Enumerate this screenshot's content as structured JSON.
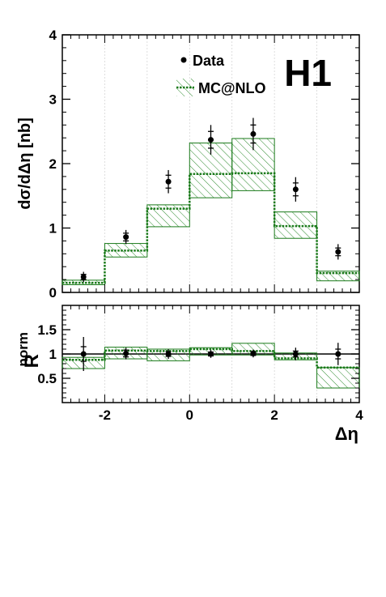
{
  "experiment_label": "H1",
  "legend": {
    "data_label": "Data",
    "mc_label": "MC@NLO"
  },
  "colors": {
    "mc_line": "#1a7a1a",
    "mc_hatch": "#2e8b2e",
    "data": "#000000"
  },
  "chart_data": [
    {
      "type": "scatter",
      "panel": "top",
      "ylabel": "dσ/dΔη [nb]",
      "xlim": [
        -3,
        4
      ],
      "ylim": [
        0,
        4
      ],
      "x_ticks": [],
      "y_ticks": [
        "0",
        "1",
        "2",
        "3",
        "4"
      ],
      "grid": false,
      "legend_position": "top-center",
      "bins": [
        {
          "lo": -3,
          "hi": -2,
          "data": 0.24,
          "stat": 0.04,
          "tot": 0.08,
          "mc": 0.15,
          "mc_lo": 0.12,
          "mc_hi": 0.19
        },
        {
          "lo": -2,
          "hi": -1,
          "data": 0.86,
          "stat": 0.06,
          "tot": 0.11,
          "mc": 0.65,
          "mc_lo": 0.55,
          "mc_hi": 0.76
        },
        {
          "lo": -1,
          "hi": 0,
          "data": 1.72,
          "stat": 0.1,
          "tot": 0.18,
          "mc": 1.3,
          "mc_lo": 1.02,
          "mc_hi": 1.36
        },
        {
          "lo": 0,
          "hi": 1,
          "data": 2.37,
          "stat": 0.13,
          "tot": 0.23,
          "mc": 1.84,
          "mc_lo": 1.47,
          "mc_hi": 2.32
        },
        {
          "lo": 1,
          "hi": 2,
          "data": 2.46,
          "stat": 0.14,
          "tot": 0.25,
          "mc": 1.85,
          "mc_lo": 1.58,
          "mc_hi": 2.39
        },
        {
          "lo": 2,
          "hi": 3,
          "data": 1.6,
          "stat": 0.1,
          "tot": 0.19,
          "mc": 1.03,
          "mc_lo": 0.84,
          "mc_hi": 1.25
        },
        {
          "lo": 3,
          "hi": 4,
          "data": 0.63,
          "stat": 0.06,
          "tot": 0.12,
          "mc": 0.3,
          "mc_lo": 0.18,
          "mc_hi": 0.33
        }
      ]
    },
    {
      "type": "scatter",
      "panel": "ratio",
      "ylabel": "R",
      "ylabel_sup": "norm",
      "xlabel": "Δη",
      "xlim": [
        -3,
        4
      ],
      "ylim": [
        0,
        2
      ],
      "x_ticks": [
        "-2",
        "0",
        "2",
        "4"
      ],
      "x_tick_values": [
        -2,
        0,
        2,
        4
      ],
      "y_ticks": [
        "0.5",
        "1",
        "1.5"
      ],
      "y_tick_values": [
        0.5,
        1,
        1.5
      ],
      "reference_line": 1,
      "bins": [
        {
          "lo": -3,
          "hi": -2,
          "data": 1.0,
          "stat": 0.15,
          "tot": 0.35,
          "mc": 0.88,
          "mc_lo": 0.7,
          "mc_hi": 0.93
        },
        {
          "lo": -2,
          "hi": -1,
          "data": 1.01,
          "stat": 0.07,
          "tot": 0.12,
          "mc": 1.07,
          "mc_lo": 0.9,
          "mc_hi": 1.14
        },
        {
          "lo": -1,
          "hi": 0,
          "data": 1.0,
          "stat": 0.05,
          "tot": 0.1,
          "mc": 1.06,
          "mc_lo": 0.86,
          "mc_hi": 1.1
        },
        {
          "lo": 0,
          "hi": 1,
          "data": 1.0,
          "stat": 0.04,
          "tot": 0.08,
          "mc": 1.1,
          "mc_lo": 0.98,
          "mc_hi": 1.13
        },
        {
          "lo": 1,
          "hi": 2,
          "data": 1.01,
          "stat": 0.04,
          "tot": 0.08,
          "mc": 1.06,
          "mc_lo": 0.98,
          "mc_hi": 1.22
        },
        {
          "lo": 2,
          "hi": 3,
          "data": 1.0,
          "stat": 0.06,
          "tot": 0.13,
          "mc": 0.91,
          "mc_lo": 0.88,
          "mc_hi": 1.02
        },
        {
          "lo": 3,
          "hi": 4,
          "data": 1.0,
          "stat": 0.1,
          "tot": 0.23,
          "mc": 0.72,
          "mc_lo": 0.3,
          "mc_hi": 0.72
        }
      ]
    }
  ]
}
